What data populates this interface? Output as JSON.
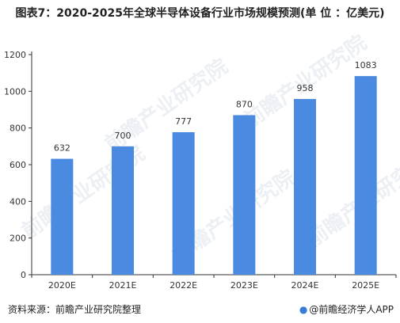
{
  "title": "图表7：2020-2025年全球半导体设备行业市场规模预测(单 位 ：亿美元)",
  "footer": {
    "source": "资料来源：前瞻产业研究院整理",
    "brand": "@前瞻经济学人APP"
  },
  "watermark": "前瞻产业研究院",
  "colors": {
    "bar": "#4a8ae0",
    "axis": "#333333",
    "label": "#333333"
  },
  "chart_data": {
    "type": "bar",
    "title": "图表7：2020-2025年全球半导体设备行业市场规模预测(单 位 ：亿美元)",
    "categories": [
      "2020E",
      "2021E",
      "2022E",
      "2023E",
      "2024E",
      "2025E"
    ],
    "values": [
      632,
      700,
      777,
      870,
      958,
      1083
    ],
    "xlabel": "",
    "ylabel": "",
    "ylim": [
      0,
      1200
    ],
    "yticks": [
      0,
      200,
      400,
      600,
      800,
      1000,
      1200
    ],
    "grid": false,
    "legend": "none"
  }
}
